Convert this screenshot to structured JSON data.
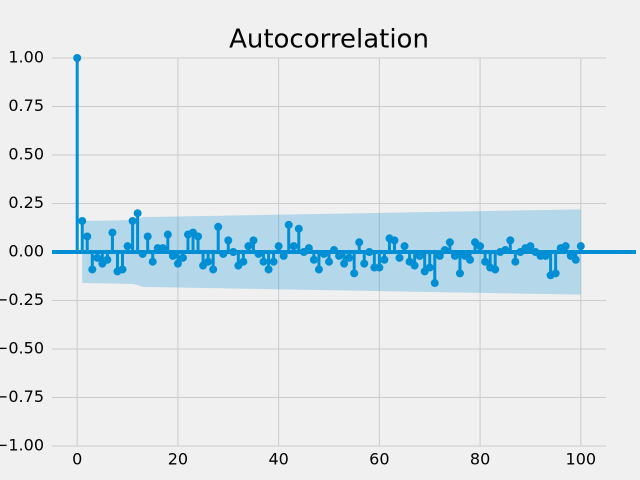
{
  "chart_data": {
    "type": "stem",
    "title": "Autocorrelation",
    "color": "#008fd5",
    "band_color": "#008fd5",
    "grid": true,
    "xlim": [
      -5,
      105
    ],
    "ylim": [
      -1,
      1
    ],
    "xticks": [
      0,
      20,
      40,
      60,
      80,
      100
    ],
    "yticks": [
      {
        "value": 1,
        "label": "1.00"
      },
      {
        "value": 0.75,
        "label": "0.75"
      },
      {
        "value": 0.5,
        "label": "0.50"
      },
      {
        "value": 0.25,
        "label": "0.25"
      },
      {
        "value": 0,
        "label": "0.00"
      },
      {
        "value": -0.25,
        "label": "−0.25"
      },
      {
        "value": -0.5,
        "label": "−0.50"
      },
      {
        "value": -0.75,
        "label": "−0.75"
      },
      {
        "value": -1,
        "label": "−1.00"
      }
    ],
    "confidence_band": {
      "x": [
        1,
        11,
        12,
        13,
        100
      ],
      "upper": [
        0.16,
        0.165,
        0.17,
        0.18,
        0.22
      ],
      "lower": [
        -0.16,
        -0.165,
        -0.17,
        -0.18,
        -0.22
      ]
    },
    "values": [
      1.0,
      0.16,
      0.08,
      -0.09,
      -0.03,
      -0.06,
      -0.04,
      0.1,
      -0.1,
      -0.09,
      0.03,
      0.16,
      0.2,
      -0.01,
      0.08,
      -0.05,
      0.02,
      0.02,
      0.09,
      -0.02,
      -0.06,
      -0.03,
      0.09,
      0.1,
      0.08,
      -0.07,
      -0.05,
      -0.09,
      0.13,
      -0.01,
      0.06,
      0.0,
      -0.07,
      -0.05,
      0.03,
      0.06,
      -0.01,
      -0.05,
      -0.09,
      -0.05,
      0.03,
      -0.02,
      0.14,
      0.03,
      0.12,
      0.0,
      0.02,
      -0.04,
      -0.09,
      -0.01,
      -0.05,
      0.01,
      -0.02,
      -0.06,
      -0.03,
      -0.11,
      0.05,
      -0.06,
      0.0,
      -0.08,
      -0.08,
      -0.04,
      0.07,
      0.06,
      -0.03,
      0.03,
      -0.05,
      -0.07,
      -0.02,
      -0.1,
      -0.08,
      -0.16,
      -0.02,
      0.01,
      0.05,
      -0.02,
      -0.11,
      -0.02,
      -0.04,
      0.05,
      0.03,
      -0.05,
      -0.08,
      -0.09,
      0.0,
      0.01,
      0.06,
      -0.05,
      0.0,
      0.02,
      0.03,
      0.0,
      -0.02,
      -0.02,
      -0.12,
      -0.11,
      0.02,
      0.03,
      -0.02,
      -0.04,
      0.03
    ]
  }
}
